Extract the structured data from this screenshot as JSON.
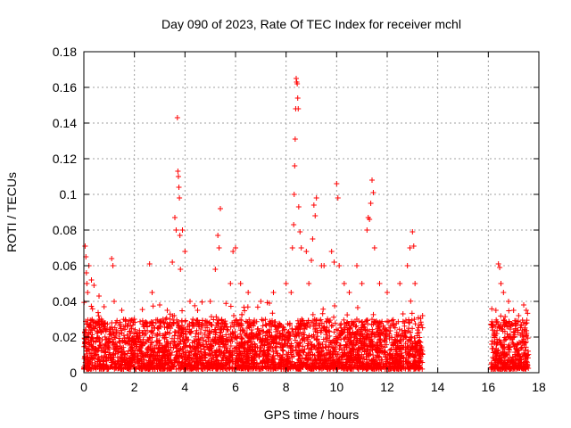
{
  "chart_data": {
    "type": "scatter",
    "title": "Day 090 of 2023, Rate Of TEC Index for receiver mchl",
    "xlabel": "GPS time / hours",
    "ylabel": "ROTI / TECUs",
    "xlim": [
      0,
      18
    ],
    "ylim": [
      0,
      0.18
    ],
    "x_ticks": [
      0,
      2,
      4,
      6,
      8,
      10,
      12,
      14,
      16,
      18
    ],
    "x_tick_labels": [
      "0",
      "2",
      "4",
      "6",
      "8",
      "10",
      "12",
      "14",
      "16",
      "18"
    ],
    "y_ticks": [
      0,
      0.02,
      0.04,
      0.06,
      0.08,
      0.1,
      0.12,
      0.14,
      0.16,
      0.18
    ],
    "y_tick_labels": [
      "0",
      "0.02",
      "0.04",
      "0.06",
      "0.08",
      "0.1",
      "0.12",
      "0.14",
      "0.16",
      "0.18"
    ],
    "grid": true,
    "marker": "+",
    "marker_color": "#ff0000",
    "data_gaps_hours": [
      [
        13.4,
        16.1
      ],
      [
        17.6,
        18
      ]
    ],
    "background_band": {
      "segments": [
        {
          "x": [
            0,
            13.4
          ],
          "min": 0.002,
          "max": 0.03
        },
        {
          "x": [
            16.1,
            17.6
          ],
          "min": 0.002,
          "max": 0.03
        }
      ]
    },
    "series": [
      {
        "values": [
          [
            0.05,
            0.071
          ],
          [
            0.08,
            0.065
          ],
          [
            0.1,
            0.056
          ],
          [
            0.12,
            0.05
          ],
          [
            0.15,
            0.045
          ],
          [
            0.2,
            0.06
          ],
          [
            0.3,
            0.052
          ],
          [
            0.4,
            0.049
          ],
          [
            0.6,
            0.043
          ],
          [
            0.8,
            0.037
          ],
          [
            1.1,
            0.064
          ],
          [
            1.15,
            0.06
          ],
          [
            1.2,
            0.04
          ],
          [
            1.5,
            0.035
          ],
          [
            2.0,
            0.03
          ],
          [
            2.6,
            0.061
          ],
          [
            2.7,
            0.045
          ],
          [
            3.0,
            0.038
          ],
          [
            3.3,
            0.035
          ],
          [
            3.5,
            0.062
          ],
          [
            3.6,
            0.087
          ],
          [
            3.65,
            0.08
          ],
          [
            3.7,
            0.143
          ],
          [
            3.72,
            0.113
          ],
          [
            3.74,
            0.11
          ],
          [
            3.76,
            0.104
          ],
          [
            3.78,
            0.098
          ],
          [
            3.8,
            0.077
          ],
          [
            3.82,
            0.058
          ],
          [
            3.9,
            0.08
          ],
          [
            4.0,
            0.068
          ],
          [
            4.2,
            0.04
          ],
          [
            4.5,
            0.035
          ],
          [
            5.0,
            0.04
          ],
          [
            5.2,
            0.058
          ],
          [
            5.3,
            0.077
          ],
          [
            5.35,
            0.07
          ],
          [
            5.4,
            0.092
          ],
          [
            5.8,
            0.05
          ],
          [
            5.9,
            0.068
          ],
          [
            6.0,
            0.07
          ],
          [
            6.2,
            0.05
          ],
          [
            6.5,
            0.045
          ],
          [
            7.0,
            0.04
          ],
          [
            7.5,
            0.045
          ],
          [
            8.0,
            0.05
          ],
          [
            8.2,
            0.045
          ],
          [
            8.25,
            0.07
          ],
          [
            8.3,
            0.083
          ],
          [
            8.32,
            0.1
          ],
          [
            8.34,
            0.116
          ],
          [
            8.36,
            0.131
          ],
          [
            8.38,
            0.148
          ],
          [
            8.4,
            0.165
          ],
          [
            8.42,
            0.163
          ],
          [
            8.44,
            0.162
          ],
          [
            8.46,
            0.154
          ],
          [
            8.48,
            0.148
          ],
          [
            8.5,
            0.093
          ],
          [
            8.55,
            0.079
          ],
          [
            8.6,
            0.07
          ],
          [
            8.8,
            0.068
          ],
          [
            8.9,
            0.05
          ],
          [
            9.0,
            0.063
          ],
          [
            9.05,
            0.075
          ],
          [
            9.1,
            0.094
          ],
          [
            9.15,
            0.088
          ],
          [
            9.2,
            0.098
          ],
          [
            9.4,
            0.06
          ],
          [
            9.5,
            0.06
          ],
          [
            9.8,
            0.068
          ],
          [
            9.9,
            0.062
          ],
          [
            10.0,
            0.106
          ],
          [
            10.05,
            0.098
          ],
          [
            10.1,
            0.06
          ],
          [
            10.3,
            0.05
          ],
          [
            10.5,
            0.045
          ],
          [
            10.8,
            0.06
          ],
          [
            11.0,
            0.05
          ],
          [
            11.2,
            0.08
          ],
          [
            11.25,
            0.087
          ],
          [
            11.3,
            0.086
          ],
          [
            11.35,
            0.095
          ],
          [
            11.4,
            0.108
          ],
          [
            11.45,
            0.101
          ],
          [
            11.5,
            0.07
          ],
          [
            11.7,
            0.05
          ],
          [
            12.0,
            0.045
          ],
          [
            12.5,
            0.05
          ],
          [
            12.8,
            0.06
          ],
          [
            12.9,
            0.07
          ],
          [
            13.0,
            0.079
          ],
          [
            13.05,
            0.071
          ],
          [
            13.1,
            0.05
          ],
          [
            13.4,
            0.032
          ],
          [
            16.3,
            0.035
          ],
          [
            16.4,
            0.061
          ],
          [
            16.45,
            0.059
          ],
          [
            16.5,
            0.05
          ],
          [
            16.6,
            0.045
          ],
          [
            16.8,
            0.04
          ],
          [
            17.0,
            0.035
          ],
          [
            17.2,
            0.032
          ],
          [
            17.4,
            0.038
          ],
          [
            17.5,
            0.035
          ]
        ]
      }
    ]
  }
}
